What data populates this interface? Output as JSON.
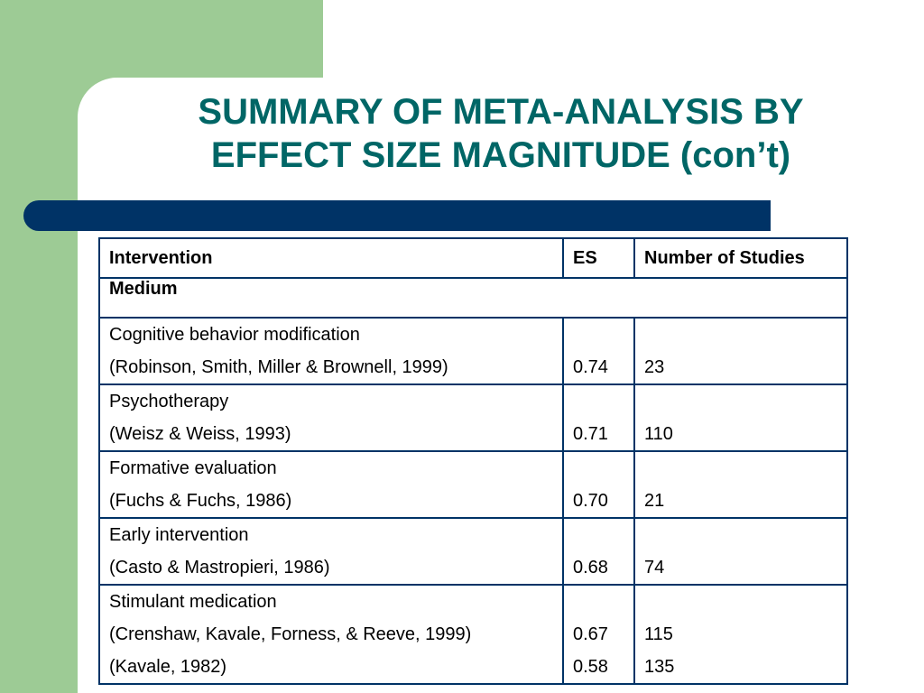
{
  "slide": {
    "title_line1": "SUMMARY OF META-ANALYSIS BY",
    "title_line2": "EFFECT SIZE MAGNITUDE (con’t)"
  },
  "colors": {
    "background_green": "#9dcb95",
    "title_teal": "#006666",
    "bar_navy": "#003366",
    "table_border": "#003366"
  },
  "table": {
    "headers": {
      "intervention": "Intervention",
      "es": "ES",
      "studies": "Number of Studies"
    },
    "group_label": "Medium",
    "rows": [
      {
        "name": "Cognitive behavior modification",
        "refs": [
          {
            "citation": "(Robinson, Smith, Miller & Brownell, 1999)",
            "es": "0.74",
            "studies": "23"
          }
        ]
      },
      {
        "name": "Psychotherapy",
        "refs": [
          {
            "citation": "(Weisz & Weiss, 1993)",
            "es": "0.71",
            "studies": "110"
          }
        ]
      },
      {
        "name": "Formative evaluation",
        "refs": [
          {
            "citation": "(Fuchs & Fuchs, 1986)",
            "es": "0.70",
            "studies": "21"
          }
        ]
      },
      {
        "name": "Early intervention",
        "refs": [
          {
            "citation": "(Casto & Mastropieri, 1986)",
            "es": "0.68",
            "studies": "74"
          }
        ]
      },
      {
        "name": "Stimulant medication",
        "refs": [
          {
            "citation": "(Crenshaw, Kavale, Forness, & Reeve, 1999)",
            "es": "0.67",
            "studies": "115"
          },
          {
            "citation": "(Kavale, 1982)",
            "es": "0.58",
            "studies": "135"
          }
        ]
      }
    ]
  }
}
